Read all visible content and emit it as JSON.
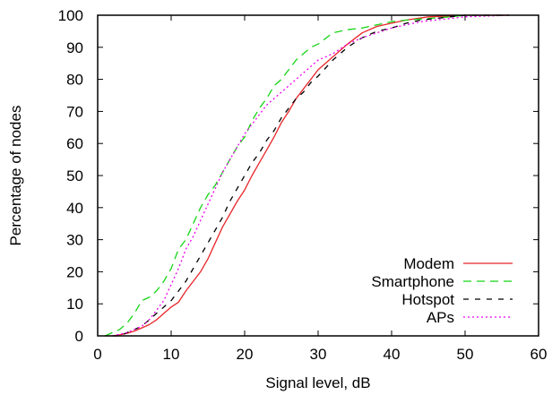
{
  "chart_data": {
    "type": "line",
    "xlabel": "Signal level, dB",
    "ylabel": "Percentage of nodes",
    "xlim": [
      0,
      60
    ],
    "ylim": [
      0,
      100
    ],
    "xticks": [
      0,
      10,
      20,
      30,
      40,
      50,
      60
    ],
    "yticks": [
      0,
      10,
      20,
      30,
      40,
      50,
      60,
      70,
      80,
      90,
      100
    ],
    "grid": false,
    "legend_position": "bottom-right",
    "series": [
      {
        "name": "Modem",
        "color": "#e8252a",
        "dash": "solid",
        "points": [
          [
            1,
            0
          ],
          [
            2,
            0
          ],
          [
            3,
            0.3
          ],
          [
            4,
            0.8
          ],
          [
            5,
            1.5
          ],
          [
            6,
            2.5
          ],
          [
            7,
            3.5
          ],
          [
            8,
            5
          ],
          [
            9,
            7
          ],
          [
            10,
            9
          ],
          [
            11,
            10.5
          ],
          [
            12,
            14
          ],
          [
            13,
            17
          ],
          [
            14,
            20
          ],
          [
            15,
            24
          ],
          [
            16,
            29
          ],
          [
            17,
            34
          ],
          [
            18,
            38
          ],
          [
            19,
            42
          ],
          [
            20,
            45.5
          ],
          [
            21,
            50
          ],
          [
            22,
            54
          ],
          [
            23,
            58
          ],
          [
            24,
            62
          ],
          [
            25,
            66.5
          ],
          [
            26,
            70
          ],
          [
            27,
            74
          ],
          [
            28,
            77
          ],
          [
            29,
            80
          ],
          [
            30,
            83
          ],
          [
            32,
            87
          ],
          [
            34,
            91
          ],
          [
            36,
            94.5
          ],
          [
            38,
            96.5
          ],
          [
            40,
            97.5
          ],
          [
            42,
            98.5
          ],
          [
            45,
            99.5
          ],
          [
            50,
            100
          ],
          [
            56,
            100
          ]
        ]
      },
      {
        "name": "Smartphone",
        "color": "#14d414",
        "dash": "long",
        "points": [
          [
            1,
            0
          ],
          [
            2,
            1
          ],
          [
            3,
            2
          ],
          [
            4,
            4
          ],
          [
            5,
            7
          ],
          [
            6,
            11
          ],
          [
            7,
            12
          ],
          [
            8,
            14
          ],
          [
            9,
            17
          ],
          [
            10,
            21
          ],
          [
            11,
            27
          ],
          [
            12,
            30
          ],
          [
            13,
            35
          ],
          [
            14,
            40
          ],
          [
            15,
            44
          ],
          [
            16,
            47
          ],
          [
            17,
            51
          ],
          [
            18,
            55
          ],
          [
            19,
            59
          ],
          [
            20,
            62
          ],
          [
            21,
            67
          ],
          [
            22,
            71
          ],
          [
            23,
            74
          ],
          [
            24,
            78
          ],
          [
            25,
            80
          ],
          [
            26,
            83
          ],
          [
            27,
            86
          ],
          [
            28,
            88
          ],
          [
            29,
            90
          ],
          [
            30,
            91
          ],
          [
            32,
            94.5
          ],
          [
            34,
            95.5
          ],
          [
            36,
            96
          ],
          [
            38,
            97
          ],
          [
            40,
            98
          ],
          [
            42,
            98.5
          ],
          [
            45,
            99
          ],
          [
            48,
            99.5
          ],
          [
            50,
            100
          ],
          [
            56,
            100
          ]
        ]
      },
      {
        "name": "Hotspot",
        "color": "#000000",
        "dash": "short",
        "points": [
          [
            2,
            0
          ],
          [
            3,
            0
          ],
          [
            4,
            1
          ],
          [
            5,
            2
          ],
          [
            6,
            3
          ],
          [
            7,
            5
          ],
          [
            8,
            7
          ],
          [
            9,
            9
          ],
          [
            10,
            11
          ],
          [
            11,
            14
          ],
          [
            12,
            17
          ],
          [
            13,
            21
          ],
          [
            14,
            25
          ],
          [
            15,
            29
          ],
          [
            16,
            33
          ],
          [
            17,
            37
          ],
          [
            18,
            42
          ],
          [
            19,
            46
          ],
          [
            20,
            50
          ],
          [
            21,
            54
          ],
          [
            22,
            57
          ],
          [
            23,
            61
          ],
          [
            24,
            64
          ],
          [
            25,
            68
          ],
          [
            26,
            71
          ],
          [
            27,
            74
          ],
          [
            28,
            76
          ],
          [
            29,
            79
          ],
          [
            30,
            81
          ],
          [
            32,
            86
          ],
          [
            34,
            90
          ],
          [
            36,
            93
          ],
          [
            38,
            95
          ],
          [
            40,
            96
          ],
          [
            42,
            97.5
          ],
          [
            44,
            98.5
          ],
          [
            46,
            99
          ],
          [
            48,
            99.5
          ],
          [
            50,
            100
          ],
          [
            56,
            100
          ]
        ]
      },
      {
        "name": "APs",
        "color": "#ee00ee",
        "dash": "dotted",
        "points": [
          [
            2,
            0
          ],
          [
            3,
            0.5
          ],
          [
            4,
            1
          ],
          [
            5,
            2
          ],
          [
            6,
            3
          ],
          [
            7,
            5
          ],
          [
            8,
            8
          ],
          [
            9,
            11
          ],
          [
            10,
            16
          ],
          [
            11,
            21
          ],
          [
            12,
            27
          ],
          [
            13,
            31
          ],
          [
            14,
            36
          ],
          [
            15,
            41
          ],
          [
            16,
            46
          ],
          [
            17,
            51
          ],
          [
            18,
            55
          ],
          [
            19,
            59
          ],
          [
            20,
            63
          ],
          [
            21,
            66
          ],
          [
            22,
            69
          ],
          [
            23,
            72
          ],
          [
            24,
            74
          ],
          [
            25,
            76
          ],
          [
            26,
            78
          ],
          [
            27,
            80
          ],
          [
            28,
            82
          ],
          [
            29,
            84
          ],
          [
            30,
            86
          ],
          [
            32,
            88
          ],
          [
            34,
            91
          ],
          [
            36,
            93
          ],
          [
            38,
            94.5
          ],
          [
            40,
            96
          ],
          [
            42,
            97
          ],
          [
            44,
            98
          ],
          [
            46,
            98.5
          ],
          [
            48,
            99
          ],
          [
            50,
            99.5
          ],
          [
            56,
            100
          ]
        ]
      }
    ]
  }
}
